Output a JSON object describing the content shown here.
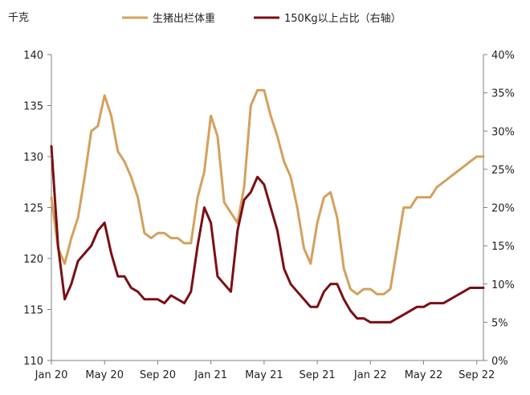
{
  "chart_data": {
    "type": "line",
    "left_axis_unit": "千克",
    "x_tick_labels": [
      "Jan 20",
      "May 20",
      "Sep 20",
      "Jan 21",
      "May 21",
      "Sep 21",
      "Jan 22",
      "May 22",
      "Sep 22"
    ],
    "y_left": {
      "range": [
        110,
        140
      ],
      "ticks": [
        "110",
        "115",
        "120",
        "125",
        "130",
        "135",
        "140"
      ]
    },
    "y_right": {
      "range": [
        0,
        40
      ],
      "ticks": [
        "0%",
        "5%",
        "10%",
        "15%",
        "20%",
        "25%",
        "30%",
        "35%",
        "40%"
      ]
    },
    "grid": false,
    "legend_position": "top",
    "colors": {
      "weight": "#d4a05c",
      "share": "#7a0f14",
      "axis": "#7f7f7f"
    },
    "series": [
      {
        "name": "生猪出栏体重",
        "axis": "left",
        "x": [
          0,
          0.5,
          1,
          1.5,
          2,
          2.5,
          3,
          3.5,
          4,
          4.5,
          5,
          5.5,
          6,
          6.5,
          7,
          7.5,
          8,
          8.5,
          9,
          9.5,
          10,
          10.5,
          11,
          11.5,
          12,
          12.5,
          13,
          13.5,
          14,
          14.5,
          15,
          15.5,
          16,
          16.5,
          17,
          17.5,
          18,
          18.5,
          19,
          19.5,
          20,
          20.5,
          21,
          21.5,
          22,
          22.5,
          23,
          23.5,
          24,
          24.5,
          25,
          25.5,
          26,
          26.5,
          27,
          27.5,
          28,
          28.5,
          29,
          29.5,
          30,
          30.5,
          31,
          31.5,
          32,
          32.5
        ],
        "values": [
          126,
          121,
          119.5,
          122,
          124,
          128,
          132.5,
          133,
          136,
          134,
          130.5,
          129.5,
          128,
          126,
          122.5,
          122,
          122.5,
          122.5,
          122,
          122,
          121.5,
          121.5,
          126,
          128.5,
          134,
          132,
          125.5,
          124.5,
          123.5,
          127,
          135,
          136.5,
          136.5,
          134,
          132,
          129.5,
          128,
          125,
          121,
          119.5,
          123.5,
          126,
          126.5,
          124,
          119,
          117,
          116.5,
          117,
          117,
          116.5,
          116.5,
          117,
          121,
          125,
          125,
          126,
          126,
          126,
          127,
          127.5,
          128,
          128.5,
          129,
          129.5,
          130,
          130
        ],
        "unit": "千克"
      },
      {
        "name": "150Kg以上占比（右轴）",
        "axis": "right",
        "x": [
          0,
          0.5,
          1,
          1.5,
          2,
          2.5,
          3,
          3.5,
          4,
          4.5,
          5,
          5.5,
          6,
          6.5,
          7,
          7.5,
          8,
          8.5,
          9,
          9.5,
          10,
          10.5,
          11,
          11.5,
          12,
          12.5,
          13,
          13.5,
          14,
          14.5,
          15,
          15.5,
          16,
          16.5,
          17,
          17.5,
          18,
          18.5,
          19,
          19.5,
          20,
          20.5,
          21,
          21.5,
          22,
          22.5,
          23,
          23.5,
          24,
          24.5,
          25,
          25.5,
          26,
          26.5,
          27,
          27.5,
          28,
          28.5,
          29,
          29.5,
          30,
          30.5,
          31,
          31.5,
          32,
          32.5
        ],
        "values": [
          28,
          15,
          8,
          10,
          13,
          14,
          15,
          17,
          18,
          14,
          11,
          11,
          9.5,
          9,
          8,
          8,
          8,
          7.5,
          8.5,
          8,
          7.5,
          9,
          15,
          20,
          18,
          11,
          10,
          9,
          17,
          21,
          22,
          24,
          23,
          20,
          17,
          12,
          10,
          9,
          8,
          7,
          7,
          9,
          10,
          10,
          8,
          6.5,
          5.5,
          5.5,
          5,
          5,
          5,
          5,
          5.5,
          6,
          6.5,
          7,
          7,
          7.5,
          7.5,
          7.5,
          8,
          8.5,
          9,
          9.5,
          9.5,
          9.5
        ],
        "unit": "%"
      }
    ]
  }
}
